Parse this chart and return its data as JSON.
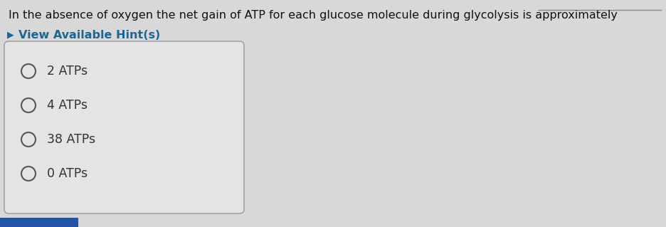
{
  "question": "In the absence of oxygen the net gain of ATP for each glucose molecule during glycolysis is approximately",
  "hint_text": "View Available Hint(s)",
  "choices": [
    "2 ATPs",
    "4 ATPs",
    "38 ATPs",
    "0 ATPs"
  ],
  "bg_color": "#d8d8d8",
  "box_bg_color": "#e8e8e8",
  "box_border_color": "#999999",
  "question_color": "#111111",
  "hint_color": "#1a6696",
  "choice_color": "#333333",
  "circle_color": "#555555",
  "hint_arrow_color": "#1a6696",
  "bottom_bar_color": "#2255aa",
  "underline_color": "#888888",
  "question_fontsize": 11.5,
  "hint_fontsize": 11.5,
  "choice_fontsize": 12.5,
  "fig_width": 9.36,
  "fig_height": 3.19,
  "dpi": 100
}
